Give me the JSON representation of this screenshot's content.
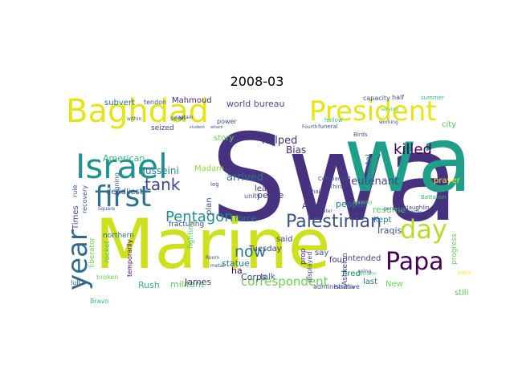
{
  "title": "2008-03",
  "words": [
    {
      "text": "Swa",
      "color": "#46327e",
      "vertical": false
    },
    {
      "text": "wa",
      "color": "#1f9e89",
      "vertical": false
    },
    {
      "text": "Marine",
      "color": "#cde11d",
      "vertical": false
    },
    {
      "text": "Baghdad",
      "color": "#e5e419",
      "vertical": false
    },
    {
      "text": "President",
      "color": "#e5e419",
      "vertical": false
    },
    {
      "text": "Israel",
      "color": "#21918c",
      "vertical": false
    },
    {
      "text": "first",
      "color": "#2c728e",
      "vertical": false
    },
    {
      "text": "day",
      "color": "#b5de2b",
      "vertical": false
    },
    {
      "text": "Papa",
      "color": "#440154",
      "vertical": false
    },
    {
      "text": "year",
      "color": "#31688e",
      "vertical": true
    },
    {
      "text": "Palestinian",
      "color": "#3b528b",
      "vertical": false
    },
    {
      "text": "Pentagon",
      "color": "#238a8d",
      "vertical": false
    },
    {
      "text": "tank",
      "color": "#3e4989",
      "vertical": false
    },
    {
      "text": "killed",
      "color": "#440154",
      "vertical": false
    },
    {
      "text": "now",
      "color": "#2c728e",
      "vertical": false
    },
    {
      "text": "correspondent",
      "color": "#6ece58",
      "vertical": false
    },
    {
      "text": "lieutenant",
      "color": "#3e4989",
      "vertical": false
    },
    {
      "text": "Husseini",
      "color": "#26828e",
      "vertical": false
    },
    {
      "text": "American",
      "color": "#35b779",
      "vertical": false
    },
    {
      "text": "world bureau",
      "color": "#3b528b",
      "vertical": false
    },
    {
      "text": "Mahmoud",
      "color": "#482878",
      "vertical": false
    },
    {
      "text": "Madam",
      "color": "#90d743",
      "vertical": false
    },
    {
      "text": "story",
      "color": "#6ece58",
      "vertical": false
    },
    {
      "text": "arrived",
      "color": "#2c728e",
      "vertical": false
    },
    {
      "text": "helped",
      "color": "#46327e",
      "vertical": false
    },
    {
      "text": "Bias",
      "color": "#472c7a",
      "vertical": false
    },
    {
      "text": "peace",
      "color": "#443983",
      "vertical": false
    },
    {
      "text": "force",
      "color": "#2a788e",
      "vertical": false
    },
    {
      "text": "statue",
      "color": "#2c728e",
      "vertical": false
    },
    {
      "text": "militant",
      "color": "#5ec962",
      "vertical": false
    },
    {
      "text": "Rush",
      "color": "#35b779",
      "vertical": false
    },
    {
      "text": "James",
      "color": "#443983",
      "vertical": false
    },
    {
      "text": "Corps",
      "color": "#3e4989",
      "vertical": false
    },
    {
      "text": "deadliest",
      "color": "#3b528b",
      "vertical": false
    },
    {
      "text": "northern",
      "color": "#31688e",
      "vertical": false
    },
    {
      "text": "Times",
      "color": "#3e4989",
      "vertical": true
    },
    {
      "text": "liberator",
      "color": "#6ece58",
      "vertical": true
    },
    {
      "text": "rocket",
      "color": "#5ec962",
      "vertical": true
    },
    {
      "text": "subvert",
      "color": "#2c728e",
      "vertical": false
    },
    {
      "text": "tendon",
      "color": "#3b528b",
      "vertical": false
    },
    {
      "text": "April",
      "color": "#433e85",
      "vertical": false
    },
    {
      "text": "people",
      "color": "#2a788e",
      "vertical": false
    },
    {
      "text": "resume",
      "color": "#5ec962",
      "vertical": false
    },
    {
      "text": "Kept",
      "color": "#2c728e",
      "vertical": false
    },
    {
      "text": "Iraqis",
      "color": "#3b528b",
      "vertical": false
    },
    {
      "text": "intended",
      "color": "#3e4989",
      "vertical": false
    },
    {
      "text": "fired",
      "color": "#2c728e",
      "vertical": false
    },
    {
      "text": "last",
      "color": "#2c728e",
      "vertical": false
    },
    {
      "text": "New",
      "color": "#6ece58",
      "vertical": false
    },
    {
      "text": "coastal",
      "color": "#2c728e",
      "vertical": true
    },
    {
      "text": "Ashkelon",
      "color": "#3e4989",
      "vertical": true
    },
    {
      "text": "progress",
      "color": "#6ece58",
      "vertical": true
    },
    {
      "text": "prayer",
      "color": "#fde725",
      "vertical": false
    },
    {
      "text": "city",
      "color": "#5ec962",
      "vertical": false
    },
    {
      "text": "still",
      "color": "#5ec962",
      "vertical": false
    },
    {
      "text": "said",
      "color": "#3e4989",
      "vertical": false
    },
    {
      "text": "say",
      "color": "#3b528b",
      "vertical": false
    },
    {
      "text": "four",
      "color": "#482878",
      "vertical": false
    },
    {
      "text": "least",
      "color": "#46327e",
      "vertical": false
    },
    {
      "text": "plan",
      "color": "#3b528b",
      "vertical": true
    },
    {
      "text": "prop",
      "color": "#482878",
      "vertical": true
    },
    {
      "text": "displayed",
      "color": "#3e4989",
      "vertical": true
    },
    {
      "text": "Tuesday",
      "color": "#3e4989",
      "vertical": false
    },
    {
      "text": "talk",
      "color": "#3b528b",
      "vertical": false
    },
    {
      "text": "ha",
      "color": "#440154",
      "vertical": false
    },
    {
      "text": "Bravo",
      "color": "#35b779",
      "vertical": false
    },
    {
      "text": "Laconic",
      "color": "#46327e",
      "vertical": false
    },
    {
      "text": "fighting",
      "color": "#5ec962",
      "vertical": true
    },
    {
      "text": "fracturing",
      "color": "#3b528b",
      "vertical": false
    },
    {
      "text": "unity",
      "color": "#3b528b",
      "vertical": false
    },
    {
      "text": "administrative",
      "color": "#3e4989",
      "vertical": false
    },
    {
      "text": "Battalion",
      "color": "#35b779",
      "vertical": false
    },
    {
      "text": "seized",
      "color": "#3e4989",
      "vertical": false
    },
    {
      "text": "power",
      "color": "#3b528b",
      "vertical": false
    },
    {
      "text": "half",
      "color": "#3b528b",
      "vertical": false
    },
    {
      "text": "capacity",
      "color": "#3b528b",
      "vertical": false
    },
    {
      "text": "summer",
      "color": "#35b779",
      "vertical": false
    },
    {
      "text": "mclaughlin",
      "color": "#46327e",
      "vertical": false
    },
    {
      "text": "Company",
      "color": "#3b528b",
      "vertical": false
    },
    {
      "text": "chain",
      "color": "#3b528b",
      "vertical": false
    },
    {
      "text": "Third",
      "color": "#3b528b",
      "vertical": false
    },
    {
      "text": "Birds",
      "color": "#3b528b",
      "vertical": false
    },
    {
      "text": "television",
      "color": "#5ec962",
      "vertical": false
    },
    {
      "text": "temporarily",
      "color": "#440154",
      "vertical": true
    },
    {
      "text": "using",
      "color": "#3b528b",
      "vertical": false
    },
    {
      "text": "serving",
      "color": "#5ec962",
      "vertical": false
    },
    {
      "text": "working",
      "color": "#3b528b",
      "vertical": false
    },
    {
      "text": "hollow",
      "color": "#35b779",
      "vertical": false
    },
    {
      "text": "funeral",
      "color": "#3b528b",
      "vertical": false
    },
    {
      "text": "Paradise",
      "color": "#3b528b",
      "vertical": false
    },
    {
      "text": "Fourth",
      "color": "#3b528b",
      "vertical": false
    },
    {
      "text": "shortly",
      "color": "#3b528b",
      "vertical": false
    },
    {
      "text": "training",
      "color": "#5ec962",
      "vertical": false
    },
    {
      "text": "Room",
      "color": "#3b528b",
      "vertical": false
    },
    {
      "text": "metal",
      "color": "#3b528b",
      "vertical": false
    },
    {
      "text": "lull",
      "color": "#3b528b",
      "vertical": false
    },
    {
      "text": "broken",
      "color": "#6ece58",
      "vertical": false
    },
    {
      "text": "within",
      "color": "#3b528b",
      "vertical": false
    },
    {
      "text": "captain",
      "color": "#3b528b",
      "vertical": false
    },
    {
      "text": "Square",
      "color": "#3b528b",
      "vertical": false
    },
    {
      "text": "leg",
      "color": "#3b528b",
      "vertical": false
    },
    {
      "text": "signing",
      "color": "#3b528b",
      "vertical": true
    },
    {
      "text": "recovery",
      "color": "#3b528b",
      "vertical": true
    },
    {
      "text": "rule",
      "color": "#3b528b",
      "vertical": true
    },
    {
      "text": "seen",
      "color": "#3b528b",
      "vertical": false
    },
    {
      "text": "student",
      "color": "#3b528b",
      "vertical": false
    },
    {
      "text": "attack",
      "color": "#3b528b",
      "vertical": false
    },
    {
      "text": "later",
      "color": "#3b528b",
      "vertical": false
    },
    {
      "text": "personal",
      "color": "#3b528b",
      "vertical": false
    },
    {
      "text": "Kabul",
      "color": "#fde725",
      "vertical": false
    }
  ]
}
